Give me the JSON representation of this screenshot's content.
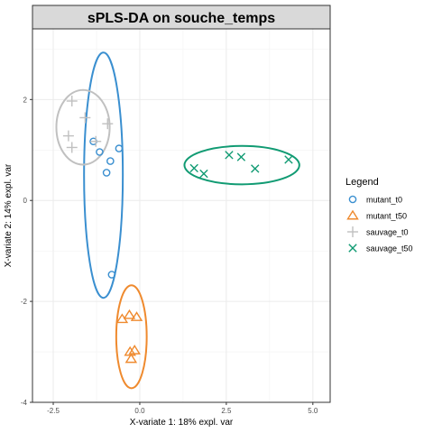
{
  "chart_data": {
    "type": "scatter",
    "title": "sPLS-DA on souche_temps",
    "xlabel": "X-variate 1: 18% expl. var",
    "ylabel": "X-variate 2: 14% expl. var",
    "xlim": [
      -3.1,
      5.5
    ],
    "ylim": [
      -4.0,
      3.4
    ],
    "xticks": [
      -2.5,
      0.0,
      2.5,
      5.0
    ],
    "xtick_labels": [
      "-2.5",
      "0.0",
      "2.5",
      "5.0"
    ],
    "yticks": [
      -4,
      -2,
      0,
      2
    ],
    "ytick_labels": [
      "-4",
      "-2",
      "0",
      "2"
    ],
    "grid": true,
    "legend_title": "Legend",
    "legend_position": "right",
    "series": [
      {
        "name": "mutant_t0",
        "marker": "circle",
        "color": "#3a8fd0",
        "points": [
          [
            -1.34,
            1.17
          ],
          [
            -1.16,
            0.96
          ],
          [
            -0.85,
            0.78
          ],
          [
            -0.6,
            1.03
          ],
          [
            -0.96,
            0.55
          ],
          [
            -0.81,
            -1.47
          ]
        ],
        "ellipse": {
          "cx": -1.05,
          "cy": 0.5,
          "rx": 0.56,
          "ry": 2.43
        }
      },
      {
        "name": "mutant_t50",
        "marker": "triangle",
        "color": "#ef8a2e",
        "points": [
          [
            -0.51,
            -2.35
          ],
          [
            -0.3,
            -2.27
          ],
          [
            -0.09,
            -2.31
          ],
          [
            -0.28,
            -3.0
          ],
          [
            -0.15,
            -2.97
          ],
          [
            -0.25,
            -3.14
          ]
        ],
        "ellipse": {
          "cx": -0.24,
          "cy": -2.7,
          "rx": 0.44,
          "ry": 1.02
        }
      },
      {
        "name": "sauvage_t0",
        "marker": "plus",
        "color": "#c0c0c0",
        "points": [
          [
            -1.96,
            1.97
          ],
          [
            -1.58,
            1.64
          ],
          [
            -2.06,
            1.28
          ],
          [
            -1.96,
            1.05
          ],
          [
            -1.27,
            1.17
          ],
          [
            -0.93,
            1.52
          ]
        ],
        "ellipse": {
          "cx": -1.64,
          "cy": 1.45,
          "rx": 0.77,
          "ry": 0.74
        }
      },
      {
        "name": "sauvage_t50",
        "marker": "x",
        "color": "#119b73",
        "points": [
          [
            1.57,
            0.64
          ],
          [
            1.85,
            0.53
          ],
          [
            2.58,
            0.9
          ],
          [
            2.93,
            0.86
          ],
          [
            3.33,
            0.63
          ],
          [
            4.3,
            0.81
          ]
        ],
        "ellipse": {
          "cx": 2.95,
          "cy": 0.7,
          "rx": 1.66,
          "ry": 0.38
        }
      }
    ]
  }
}
